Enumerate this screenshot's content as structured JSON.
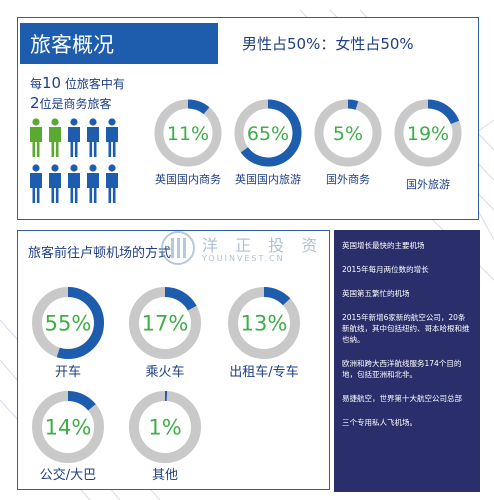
{
  "header": {
    "title": "旅客概况",
    "gender_split": "男性占50%：女性占50%"
  },
  "intro": {
    "line1_prefix": "每",
    "line1_number": "10",
    "line1_suffix": " 位旅客中有",
    "line2_number": "2",
    "line2_suffix": "位是商务旅客"
  },
  "colors": {
    "accent": "#1e5cae",
    "ring_track": "#c9c9c9",
    "percent_text": "#3fae49",
    "business_person": "#5aaa2f",
    "leisure_person": "#1e5cae",
    "fact_panel": "#2a2f6b"
  },
  "people": {
    "icon": "person-icon",
    "business_count": 2,
    "total": 10
  },
  "chart_data": [
    {
      "type": "donut",
      "title": "旅客概况",
      "series": [
        {
          "category": "英国国内商务",
          "value": 11,
          "label": "11%"
        },
        {
          "category": "英国国内旅游",
          "value": 65,
          "label": "65%"
        },
        {
          "category": "国外商务",
          "value": 5,
          "label": "5%"
        },
        {
          "category": "国外旅游",
          "value": 19,
          "label": "19%"
        }
      ]
    },
    {
      "type": "donut",
      "title": "旅客前往卢顿机场的方式",
      "series": [
        {
          "category": "开车",
          "value": 55,
          "label": "55%"
        },
        {
          "category": "乘火车",
          "value": 17,
          "label": "17%"
        },
        {
          "category": "出租车/专车",
          "value": 13,
          "label": "13%"
        },
        {
          "category": "公交/大巴",
          "value": 14,
          "label": "14%"
        },
        {
          "category": "其他",
          "value": 1,
          "label": "1%"
        }
      ]
    }
  ],
  "facts": [
    "英国增长最快的主要机场",
    "2015年每月两位数的增长",
    "英国第五繁忙的机场",
    "2015年新增6家新的航空公司，20条新航线，其中包括纽约、哥本哈根和维也纳。",
    "欧洲和跨大西洋航线服务174个目的地，包括亚洲和北非。",
    "易捷航空，世界第十大航空公司总部",
    "三个专用私人飞机场。"
  ],
  "watermark": {
    "text": "洋 正 投 资",
    "sub": "YOUINVEST.CN"
  }
}
